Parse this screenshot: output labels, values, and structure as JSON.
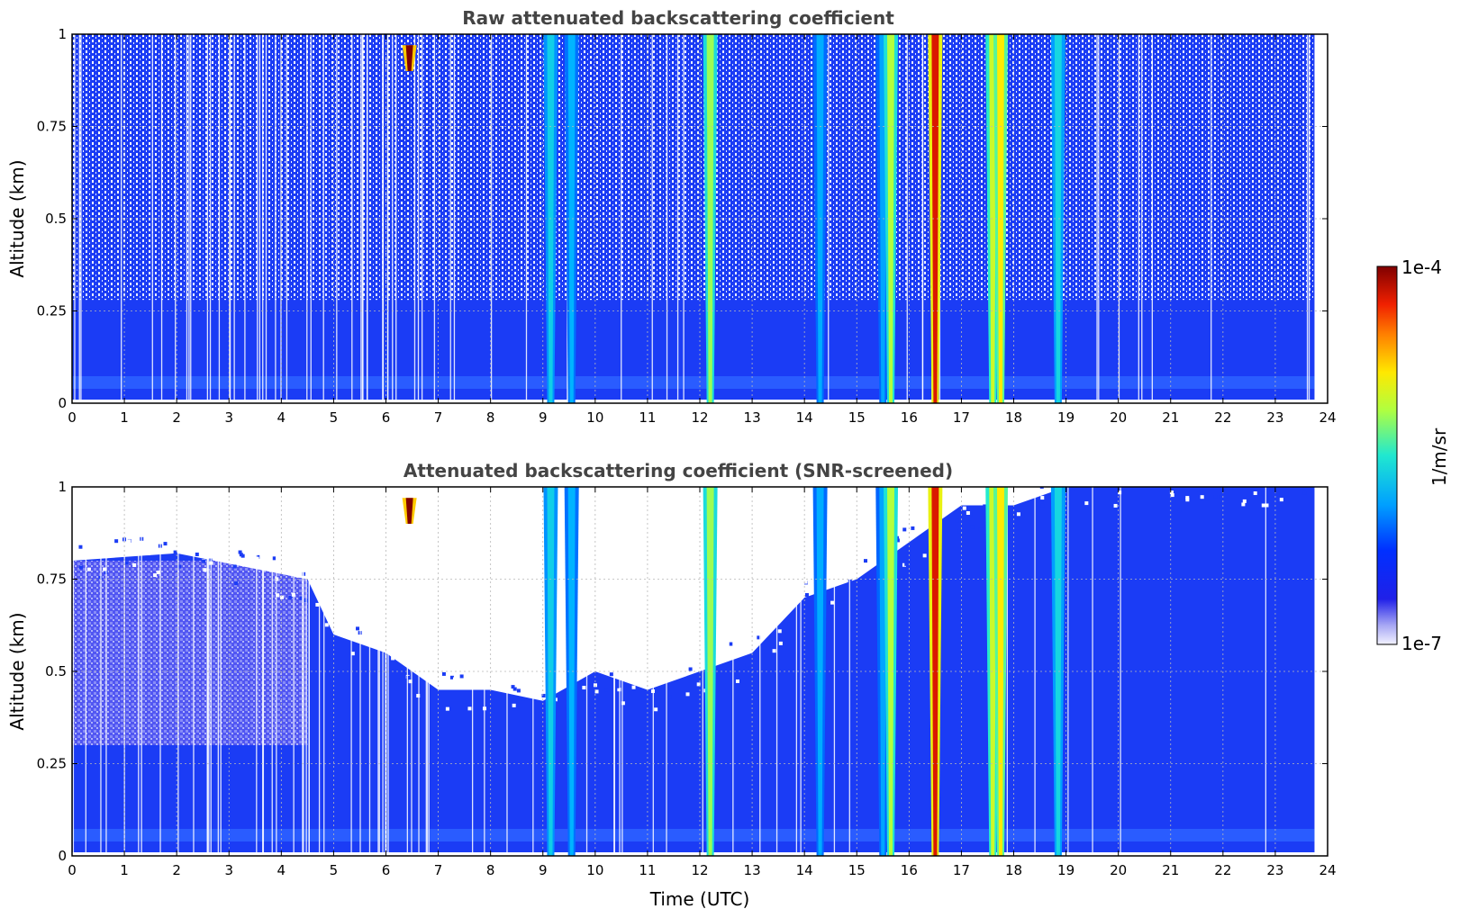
{
  "chart_data": [
    {
      "type": "heatmap",
      "title": "Raw attenuated backscattering coefficient",
      "xlabel": "",
      "ylabel": "Altitude (km)",
      "xlim": [
        0,
        24
      ],
      "ylim": [
        0,
        1
      ],
      "xticks": [
        "0",
        "1",
        "2",
        "3",
        "4",
        "5",
        "6",
        "7",
        "8",
        "9",
        "10",
        "11",
        "12",
        "13",
        "14",
        "15",
        "16",
        "17",
        "18",
        "19",
        "20",
        "21",
        "22",
        "23",
        "24"
      ],
      "yticks": [
        "0",
        "0.25",
        "0.5",
        "0.75",
        "1"
      ],
      "data_end_time": 23.75,
      "plumes": [
        {
          "t": 9.15,
          "top": 1.0,
          "intensity": 0.42
        },
        {
          "t": 9.55,
          "top": 1.0,
          "intensity": 0.36
        },
        {
          "t": 12.2,
          "top": 1.0,
          "intensity": 0.6
        },
        {
          "t": 14.3,
          "top": 1.0,
          "intensity": 0.35
        },
        {
          "t": 15.5,
          "top": 1.0,
          "intensity": 0.34
        },
        {
          "t": 15.65,
          "top": 1.0,
          "intensity": 0.62
        },
        {
          "t": 16.5,
          "top": 1.0,
          "intensity": 0.92
        },
        {
          "t": 17.6,
          "top": 1.0,
          "intensity": 0.65
        },
        {
          "t": 17.75,
          "top": 1.0,
          "intensity": 0.72
        },
        {
          "t": 18.85,
          "top": 1.0,
          "intensity": 0.44
        },
        {
          "t": 6.45,
          "top": 0.97,
          "bottom": 0.9,
          "intensity": 1.0
        }
      ]
    },
    {
      "type": "heatmap",
      "title": "Attenuated backscattering coefficient (SNR-screened)",
      "xlabel": "Time (UTC)",
      "ylabel": "Altitude (km)",
      "xlim": [
        0,
        24
      ],
      "ylim": [
        0,
        1
      ],
      "xticks": [
        "0",
        "1",
        "2",
        "3",
        "4",
        "5",
        "6",
        "7",
        "8",
        "9",
        "10",
        "11",
        "12",
        "13",
        "14",
        "15",
        "16",
        "17",
        "18",
        "19",
        "20",
        "21",
        "22",
        "23",
        "24"
      ],
      "yticks": [
        "0",
        "0.25",
        "0.5",
        "0.75",
        "1"
      ],
      "data_end_time": 23.75,
      "screened_boundary": [
        {
          "t": 0.0,
          "alt": 0.8
        },
        {
          "t": 2.0,
          "alt": 0.82
        },
        {
          "t": 4.5,
          "alt": 0.75
        },
        {
          "t": 5.0,
          "alt": 0.6
        },
        {
          "t": 6.0,
          "alt": 0.55
        },
        {
          "t": 7.0,
          "alt": 0.45
        },
        {
          "t": 8.0,
          "alt": 0.45
        },
        {
          "t": 9.0,
          "alt": 0.42
        },
        {
          "t": 10.0,
          "alt": 0.5
        },
        {
          "t": 11.0,
          "alt": 0.45
        },
        {
          "t": 12.0,
          "alt": 0.5
        },
        {
          "t": 13.0,
          "alt": 0.55
        },
        {
          "t": 14.0,
          "alt": 0.7
        },
        {
          "t": 15.0,
          "alt": 0.75
        },
        {
          "t": 16.0,
          "alt": 0.85
        },
        {
          "t": 17.0,
          "alt": 0.95
        },
        {
          "t": 18.0,
          "alt": 0.95
        },
        {
          "t": 19.0,
          "alt": 1.0
        },
        {
          "t": 24.0,
          "alt": 1.0
        }
      ]
    }
  ],
  "colorbar": {
    "label": "1/m/sr",
    "max_label": "1e-4",
    "min_label": "1e-7",
    "scale": "log",
    "colormap": "jet"
  },
  "colors": {
    "background_blue": "#1b3cf5",
    "grid": "#b8b8b8",
    "title": "#444444"
  }
}
